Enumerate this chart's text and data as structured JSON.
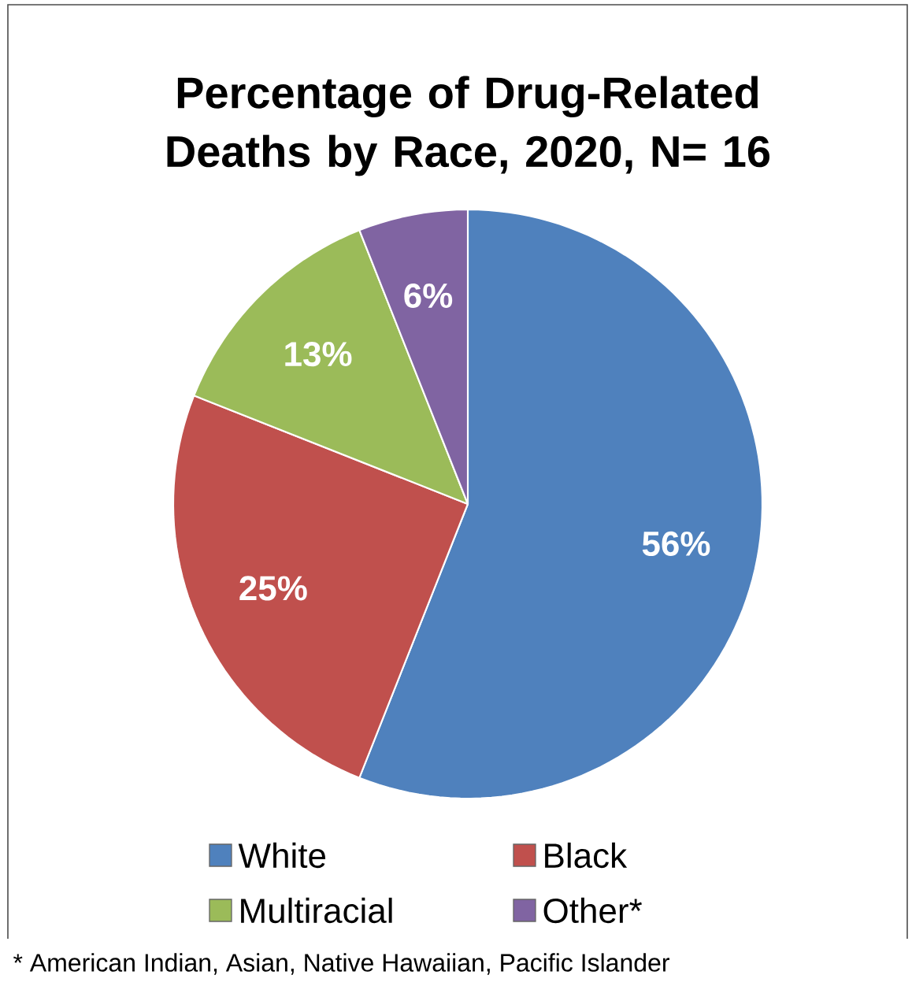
{
  "chart_data": {
    "type": "pie",
    "title": "Percentage of Drug-Related Deaths by Race, 2020, N= 16",
    "categories": [
      "White",
      "Black",
      "Multiracial",
      "Other*"
    ],
    "values": [
      56,
      25,
      13,
      6
    ],
    "colors": [
      "#4f81bd",
      "#c0504d",
      "#9bbb59",
      "#8064a2"
    ],
    "value_labels": [
      "56%",
      "25%",
      "13%",
      "6%"
    ],
    "legend": "bottom",
    "annotations": [
      "* American Indian, Asian, Native Hawaiian, Pacific Islander"
    ]
  }
}
